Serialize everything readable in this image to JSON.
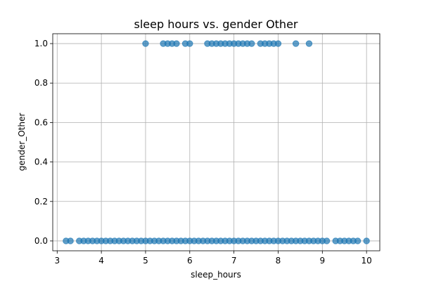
{
  "chart_data": {
    "type": "scatter",
    "title": "sleep hours vs. gender Other",
    "xlabel": "sleep_hours",
    "ylabel": "gender_Other",
    "xlim": [
      2.9,
      10.3
    ],
    "ylim": [
      -0.05,
      1.05
    ],
    "xticks": [
      3,
      4,
      5,
      6,
      7,
      8,
      9,
      10
    ],
    "yticks": [
      0.0,
      0.2,
      0.4,
      0.6,
      0.8,
      1.0
    ],
    "xtick_labels": [
      "3",
      "4",
      "5",
      "6",
      "7",
      "8",
      "9",
      "10"
    ],
    "ytick_labels": [
      "0.0",
      "0.2",
      "0.4",
      "0.6",
      "0.8",
      "1.0"
    ],
    "grid": true,
    "color": "#1f77b4",
    "series": [
      {
        "x": [
          5.0,
          5.4,
          5.5,
          5.6,
          5.7,
          5.9,
          6.0,
          6.4,
          6.5,
          6.6,
          6.7,
          6.8,
          6.9,
          7.0,
          7.1,
          7.2,
          7.3,
          7.4,
          7.6,
          7.7,
          7.8,
          7.9,
          8.0,
          8.4,
          8.7,
          3.2,
          3.3,
          3.5,
          3.6,
          3.7,
          3.8,
          3.9,
          4.0,
          4.1,
          4.2,
          4.3,
          4.4,
          4.5,
          4.6,
          4.7,
          4.8,
          4.9,
          5.0,
          5.1,
          5.2,
          5.3,
          5.4,
          5.5,
          5.6,
          5.7,
          5.8,
          5.9,
          6.0,
          6.1,
          6.2,
          6.3,
          6.4,
          6.5,
          6.6,
          6.7,
          6.8,
          6.9,
          7.0,
          7.1,
          7.2,
          7.3,
          7.4,
          7.5,
          7.6,
          7.7,
          7.8,
          7.9,
          8.0,
          8.1,
          8.2,
          8.3,
          8.4,
          8.5,
          8.6,
          8.7,
          8.8,
          8.9,
          9.0,
          9.1,
          9.3,
          9.4,
          9.5,
          9.6,
          9.7,
          9.8,
          10.0
        ],
        "y": [
          1,
          1,
          1,
          1,
          1,
          1,
          1,
          1,
          1,
          1,
          1,
          1,
          1,
          1,
          1,
          1,
          1,
          1,
          1,
          1,
          1,
          1,
          1,
          1,
          1,
          0,
          0,
          0,
          0,
          0,
          0,
          0,
          0,
          0,
          0,
          0,
          0,
          0,
          0,
          0,
          0,
          0,
          0,
          0,
          0,
          0,
          0,
          0,
          0,
          0,
          0,
          0,
          0,
          0,
          0,
          0,
          0,
          0,
          0,
          0,
          0,
          0,
          0,
          0,
          0,
          0,
          0,
          0,
          0,
          0,
          0,
          0,
          0,
          0,
          0,
          0,
          0,
          0,
          0,
          0,
          0,
          0,
          0,
          0,
          0,
          0,
          0,
          0,
          0,
          0,
          0
        ]
      }
    ]
  }
}
